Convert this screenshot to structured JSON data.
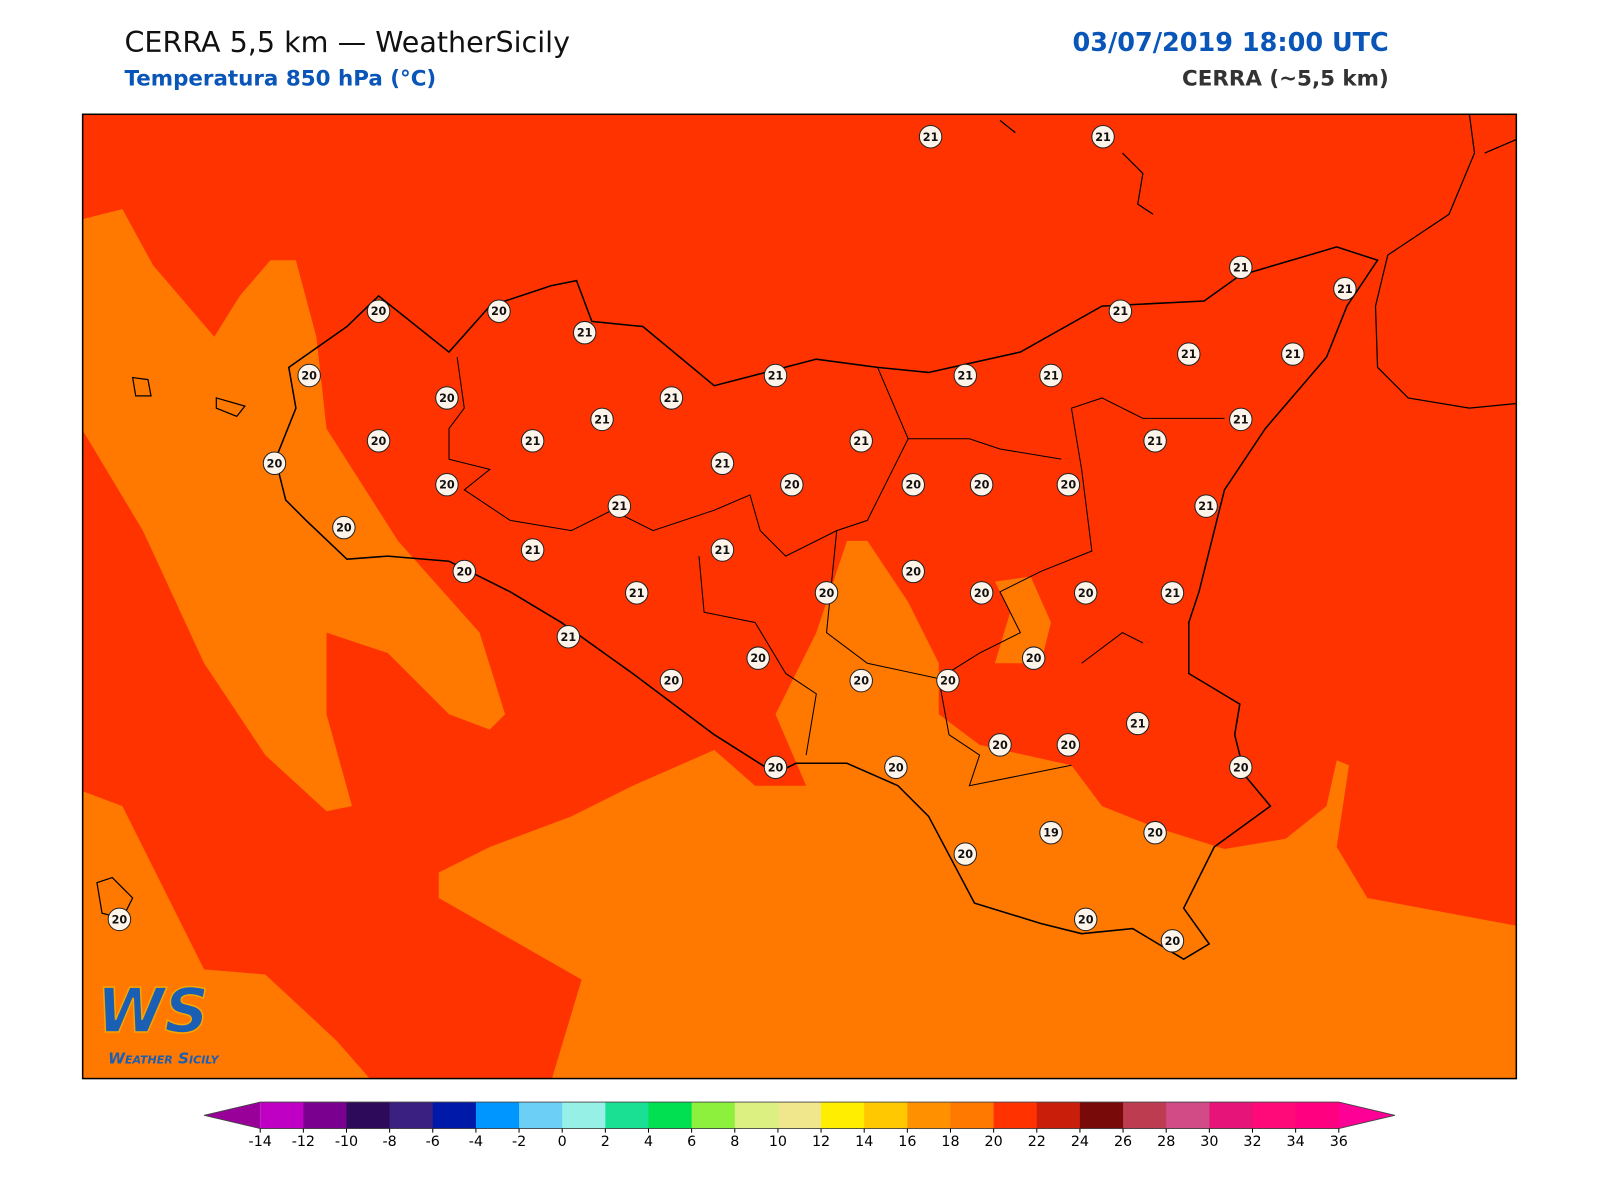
{
  "header": {
    "title": "CERRA 5,5 km — WeatherSicily",
    "subtitle": "Temperatura 850 hPa (°C)",
    "datetime": "03/07/2019 18:00 UTC",
    "model": "CERRA (~5,5 km)"
  },
  "map": {
    "station_values": [
      21,
      21,
      21,
      21,
      20,
      20,
      21,
      21,
      20,
      21,
      21,
      21,
      21,
      21,
      20,
      21,
      21,
      21,
      20,
      21,
      21,
      21,
      20,
      21,
      20,
      20,
      20,
      20,
      20,
      21,
      21,
      20,
      21,
      21,
      20,
      20,
      21,
      20,
      20,
      20,
      21,
      21,
      20,
      20,
      20,
      20,
      20,
      21,
      20,
      20,
      20,
      20,
      20,
      19,
      20,
      20,
      20,
      20,
      20
    ]
  },
  "colorbar": {
    "ticks": [
      -14,
      -12,
      -10,
      -8,
      -6,
      -4,
      -2,
      0,
      2,
      4,
      6,
      8,
      10,
      12,
      14,
      16,
      18,
      20,
      22,
      24,
      26,
      28,
      30,
      32,
      34,
      36
    ],
    "colors": [
      "#bf00c4",
      "#7a0090",
      "#2e0a5a",
      "#3a2080",
      "#0019a8",
      "#0096ff",
      "#6ccff6",
      "#96f0e6",
      "#19e092",
      "#00e050",
      "#8cf03c",
      "#dcf082",
      "#f0e68c",
      "#ffee00",
      "#ffc800",
      "#ff9000",
      "#ff7800",
      "#ff3200",
      "#c81e0a",
      "#780a0a",
      "#be3c50",
      "#d24b87",
      "#e61478",
      "#ff0a78",
      "#ff0080"
    ],
    "extend_min_color": "#990099",
    "extend_max_color": "#ff0096"
  },
  "logo": {
    "initials": "WS",
    "name": "Weather Sicily"
  }
}
